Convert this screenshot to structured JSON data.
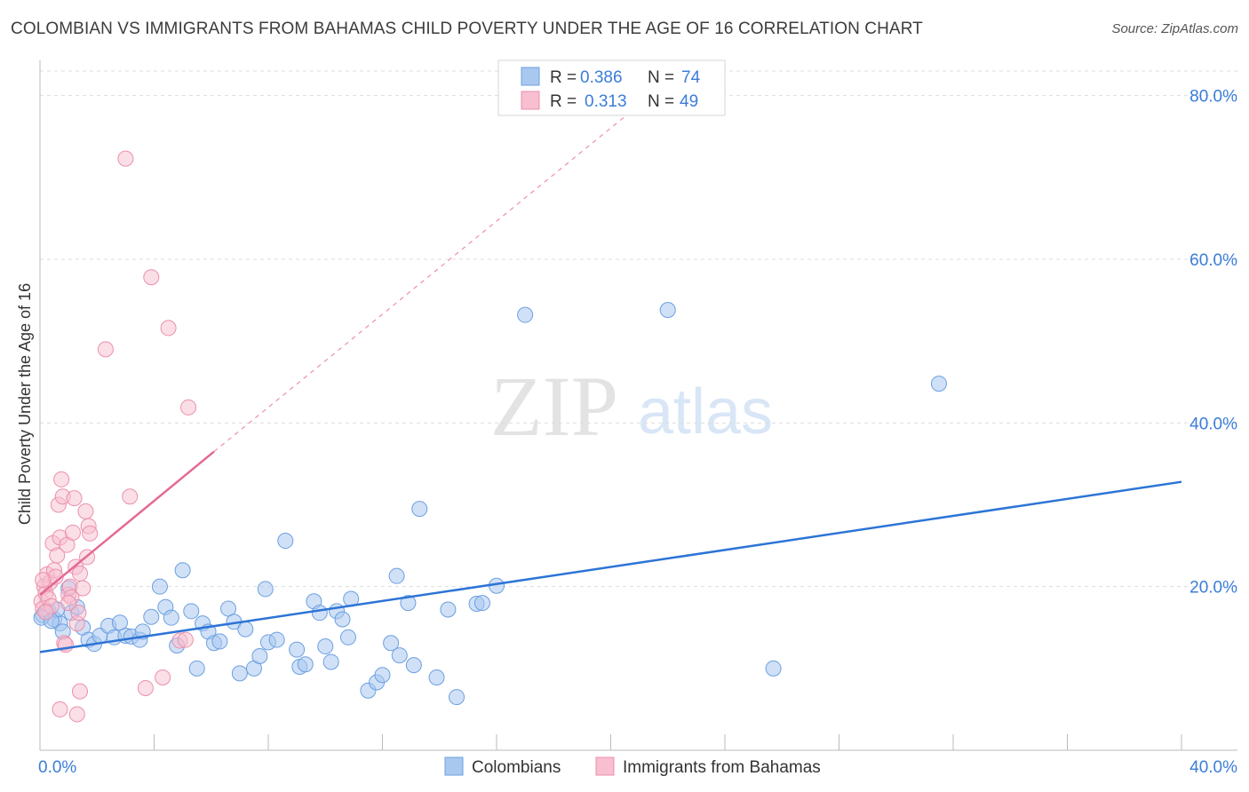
{
  "chart_data": {
    "type": "scatter",
    "title": "COLOMBIAN VS IMMIGRANTS FROM BAHAMAS CHILD POVERTY UNDER THE AGE OF 16 CORRELATION CHART",
    "source": "Source: ZipAtlas.com",
    "watermark_zip": "ZIP",
    "watermark_atlas": "atlas",
    "ylabel": "Child Poverty Under the Age of 16",
    "xlim": [
      0,
      40
    ],
    "ylim": [
      0,
      83
    ],
    "x_tick_labels": [
      {
        "value": 0,
        "label": "0.0%"
      },
      {
        "value": 40,
        "label": "40.0%"
      }
    ],
    "y_tick_labels": [
      {
        "value": 20,
        "label": "20.0%"
      },
      {
        "value": 40,
        "label": "40.0%"
      },
      {
        "value": 60,
        "label": "60.0%"
      },
      {
        "value": 80,
        "label": "80.0%"
      }
    ],
    "x_minor_ticks": [
      0,
      4,
      8,
      12,
      16,
      20,
      24,
      28,
      32,
      36,
      40
    ],
    "y_gridlines": [
      20,
      40,
      60,
      80
    ],
    "legend": {
      "r_label": "R =",
      "n_label": "N =",
      "entries": [
        {
          "series": "Colombians",
          "r": "0.386",
          "n": "74"
        },
        {
          "series": "Immigrants from Bahamas",
          "r": "0.313",
          "n": "49"
        }
      ]
    },
    "colors": {
      "colombians_fill": "#a9c8f0",
      "colombians_stroke": "#6c9fe0",
      "colombians_line": "#2c74d6",
      "bahamas_fill": "#f7bfd0",
      "bahamas_stroke": "#ec8fac",
      "bahamas_line": "#e36a94",
      "grid": "#dddddd",
      "axis_label": "#3b7dd8"
    },
    "series": [
      {
        "name": "Colombians",
        "trend": {
          "x0": 0,
          "y0": 12.0,
          "x1": 40,
          "y1": 32.8
        },
        "points": [
          [
            0.1,
            16.5
          ],
          [
            0.3,
            17.0
          ],
          [
            0.5,
            16.0
          ],
          [
            0.7,
            15.5
          ],
          [
            0.8,
            14.5
          ],
          [
            1.0,
            19.8
          ],
          [
            1.1,
            16.8
          ],
          [
            1.3,
            17.5
          ],
          [
            1.5,
            15.0
          ],
          [
            1.7,
            13.5
          ],
          [
            1.9,
            13.0
          ],
          [
            2.1,
            14.0
          ],
          [
            2.4,
            15.2
          ],
          [
            2.6,
            13.8
          ],
          [
            2.8,
            15.6
          ],
          [
            3.0,
            14.0
          ],
          [
            3.2,
            13.9
          ],
          [
            3.5,
            13.5
          ],
          [
            3.6,
            14.5
          ],
          [
            3.9,
            16.3
          ],
          [
            4.2,
            20.0
          ],
          [
            4.4,
            17.5
          ],
          [
            4.6,
            16.2
          ],
          [
            4.8,
            12.8
          ],
          [
            5.0,
            22.0
          ],
          [
            5.3,
            17.0
          ],
          [
            5.5,
            10.0
          ],
          [
            5.7,
            15.5
          ],
          [
            5.9,
            14.5
          ],
          [
            6.1,
            13.1
          ],
          [
            6.3,
            13.3
          ],
          [
            6.6,
            17.3
          ],
          [
            6.8,
            15.7
          ],
          [
            7.0,
            9.4
          ],
          [
            7.2,
            14.8
          ],
          [
            7.5,
            10.0
          ],
          [
            7.7,
            11.5
          ],
          [
            7.9,
            19.7
          ],
          [
            8.0,
            13.2
          ],
          [
            8.3,
            13.5
          ],
          [
            8.6,
            25.6
          ],
          [
            9.0,
            12.3
          ],
          [
            9.1,
            10.2
          ],
          [
            9.3,
            10.5
          ],
          [
            9.6,
            18.2
          ],
          [
            9.8,
            16.8
          ],
          [
            10.0,
            12.7
          ],
          [
            10.2,
            10.8
          ],
          [
            10.4,
            17.0
          ],
          [
            10.6,
            16.0
          ],
          [
            10.8,
            13.8
          ],
          [
            10.9,
            18.5
          ],
          [
            11.5,
            7.3
          ],
          [
            11.8,
            8.3
          ],
          [
            12.0,
            9.2
          ],
          [
            12.3,
            13.1
          ],
          [
            12.5,
            21.3
          ],
          [
            12.6,
            11.6
          ],
          [
            12.9,
            18.0
          ],
          [
            13.1,
            10.4
          ],
          [
            13.3,
            29.5
          ],
          [
            13.9,
            8.9
          ],
          [
            14.3,
            17.2
          ],
          [
            14.6,
            6.5
          ],
          [
            15.3,
            17.9
          ],
          [
            15.5,
            18.0
          ],
          [
            16.0,
            20.1
          ],
          [
            17.0,
            53.2
          ],
          [
            22.0,
            53.8
          ],
          [
            25.7,
            10.0
          ],
          [
            31.5,
            44.8
          ],
          [
            0.05,
            16.2
          ],
          [
            0.6,
            17.2
          ],
          [
            0.4,
            15.8
          ]
        ]
      },
      {
        "name": "Immigrants from Bahamas",
        "trend": {
          "x0": 0,
          "y0": 19.0,
          "x1": 6.1,
          "y1": 36.5
        },
        "trend_dashed": {
          "x0": 6.1,
          "y0": 36.5,
          "x1": 21.5,
          "y1": 80.3
        },
        "points": [
          [
            0.05,
            18.2
          ],
          [
            0.1,
            17.3
          ],
          [
            0.15,
            20.0
          ],
          [
            0.2,
            19.2
          ],
          [
            0.25,
            21.5
          ],
          [
            0.3,
            18.5
          ],
          [
            0.35,
            20.5
          ],
          [
            0.4,
            17.6
          ],
          [
            0.45,
            25.3
          ],
          [
            0.5,
            22.0
          ],
          [
            0.55,
            21.2
          ],
          [
            0.6,
            23.8
          ],
          [
            0.65,
            30.0
          ],
          [
            0.7,
            26.0
          ],
          [
            0.75,
            33.1
          ],
          [
            0.8,
            31.0
          ],
          [
            0.85,
            13.1
          ],
          [
            0.9,
            12.9
          ],
          [
            0.95,
            25.1
          ],
          [
            1.0,
            19.0
          ],
          [
            1.05,
            20.0
          ],
          [
            1.1,
            18.7
          ],
          [
            1.15,
            26.6
          ],
          [
            1.2,
            30.8
          ],
          [
            1.25,
            22.4
          ],
          [
            1.3,
            15.5
          ],
          [
            1.35,
            16.8
          ],
          [
            1.4,
            21.6
          ],
          [
            1.5,
            19.8
          ],
          [
            1.6,
            29.2
          ],
          [
            1.65,
            23.6
          ],
          [
            1.7,
            27.4
          ],
          [
            1.75,
            26.5
          ],
          [
            1.4,
            7.2
          ],
          [
            1.3,
            4.4
          ],
          [
            0.7,
            5.0
          ],
          [
            1.0,
            18.0
          ],
          [
            2.3,
            49.0
          ],
          [
            3.0,
            72.3
          ],
          [
            3.15,
            31.0
          ],
          [
            3.7,
            7.6
          ],
          [
            3.9,
            57.8
          ],
          [
            4.3,
            8.9
          ],
          [
            4.5,
            51.6
          ],
          [
            4.9,
            13.4
          ],
          [
            5.1,
            13.5
          ],
          [
            5.2,
            41.9
          ],
          [
            0.1,
            20.8
          ],
          [
            0.2,
            16.9
          ]
        ]
      }
    ]
  }
}
